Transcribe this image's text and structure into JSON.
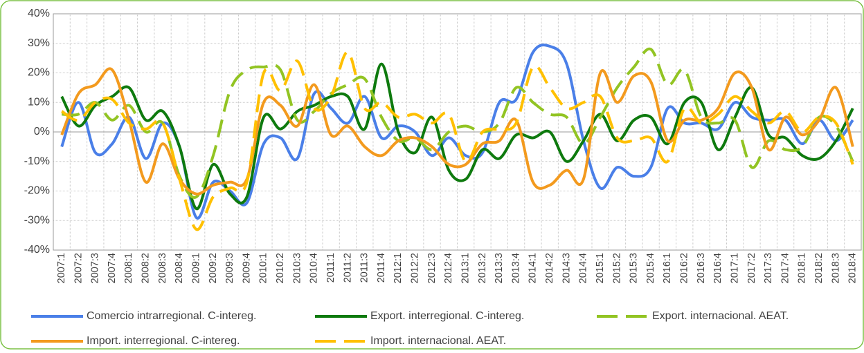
{
  "chart_data": {
    "type": "line",
    "categories": [
      "2007:1",
      "2007:2",
      "2007:3",
      "2007:4",
      "2008:1",
      "2008:2",
      "2008:3",
      "2008:4",
      "2009:1",
      "2009:2",
      "2009:3",
      "2009:4",
      "2010:1",
      "2010:2",
      "2010:3",
      "2010:4",
      "2011:1",
      "2011:2",
      "2011:3",
      "2011:4",
      "2012:1",
      "2012:2",
      "2012:3",
      "2012:4",
      "2013:1",
      "2013:2",
      "2013:3",
      "2013:4",
      "2014:1",
      "2014:2",
      "2014:3",
      "2014:4",
      "2015:1",
      "2015:2",
      "2015:3",
      "2015:4",
      "2016:1",
      "2016:2",
      "2016:3",
      "2016:4",
      "2017:1",
      "2017:2",
      "2017:3",
      "2017:4",
      "2018:1",
      "2018:2",
      "2018:3",
      "2018:4"
    ],
    "series": [
      {
        "name": "Comercio intrarregional. C-intereg.",
        "color": "#4a7fe8",
        "dash": false,
        "values": [
          -5,
          10,
          -7,
          -4,
          5,
          -9,
          3,
          -5,
          -29,
          -17,
          -20,
          -24,
          -4,
          -2,
          -9,
          13,
          8,
          3,
          12,
          -2,
          2,
          0,
          -8,
          -2,
          -8,
          -7,
          10,
          11,
          27,
          29,
          23,
          -3,
          -19,
          -12,
          -15,
          -12,
          8,
          3,
          3,
          1,
          10,
          5,
          4,
          4,
          -4,
          4,
          -3,
          4
        ]
      },
      {
        "name": "Export. interregional. C-intereg.",
        "color": "#0e7a0e",
        "dash": false,
        "values": [
          12,
          2,
          9,
          12,
          15,
          4,
          7,
          -5,
          -26,
          -11,
          -21,
          -22,
          5,
          1,
          7,
          9,
          12,
          12,
          1,
          23,
          0,
          -7,
          5,
          -13,
          -16,
          -6,
          -9,
          -1,
          -2,
          0,
          -10,
          -3,
          6,
          -3,
          4,
          5,
          -4,
          10,
          10,
          -6,
          5,
          15,
          -1,
          -2,
          -8,
          -9,
          -3,
          8
        ]
      },
      {
        "name": "Export. internacional. AEAT.",
        "color": "#92c423",
        "dash": true,
        "values": [
          6,
          6,
          10,
          4,
          9,
          0,
          3,
          -15,
          -22,
          -8,
          14,
          21,
          22,
          21,
          4,
          7,
          13,
          16,
          18,
          5,
          -3,
          -2,
          -6,
          0,
          2,
          0,
          3,
          15,
          10,
          6,
          5,
          -4,
          5,
          15,
          22,
          28,
          16,
          21,
          5,
          3,
          4,
          -12,
          -3,
          -6,
          -5,
          5,
          2,
          -10
        ]
      },
      {
        "name": "Import. interregional. C-intereg.",
        "color": "#f39a1e",
        "dash": false,
        "values": [
          -1,
          13,
          16,
          21,
          4,
          -17,
          -4,
          -16,
          -21,
          -18,
          -17,
          -16,
          10,
          9,
          2,
          16,
          -1,
          2,
          -5,
          -8,
          -3,
          -2,
          -5,
          -11,
          -11,
          -4,
          -3,
          4,
          -17,
          -18,
          -13,
          -16,
          20,
          10,
          19,
          17,
          -3,
          4,
          4,
          8,
          20,
          15,
          -6,
          5,
          -1,
          4,
          15,
          -5
        ]
      },
      {
        "name": "Import. internacional. AEAT.",
        "color": "#ffc000",
        "dash": true,
        "values": [
          7,
          4,
          10,
          11,
          3,
          1,
          3,
          -16,
          -33,
          -22,
          -19,
          -17,
          20,
          14,
          24,
          8,
          12,
          27,
          8,
          10,
          5,
          6,
          3,
          6,
          -10,
          0,
          1,
          3,
          22,
          15,
          8,
          10,
          12,
          -2,
          -3,
          -2,
          -10,
          8,
          3,
          6,
          12,
          7,
          3,
          7,
          0,
          5,
          3,
          -11
        ]
      }
    ],
    "ylim": [
      -40,
      40
    ],
    "yticks": [
      {
        "value": -40,
        "label": "-40%"
      },
      {
        "value": -30,
        "label": "-30%"
      },
      {
        "value": -20,
        "label": "-20%"
      },
      {
        "value": -10,
        "label": "-10%"
      },
      {
        "value": 0,
        "label": "0%"
      },
      {
        "value": 10,
        "label": "10%"
      },
      {
        "value": 20,
        "label": "20%"
      },
      {
        "value": 30,
        "label": "30%"
      },
      {
        "value": 40,
        "label": "40%"
      }
    ],
    "grid": true
  }
}
